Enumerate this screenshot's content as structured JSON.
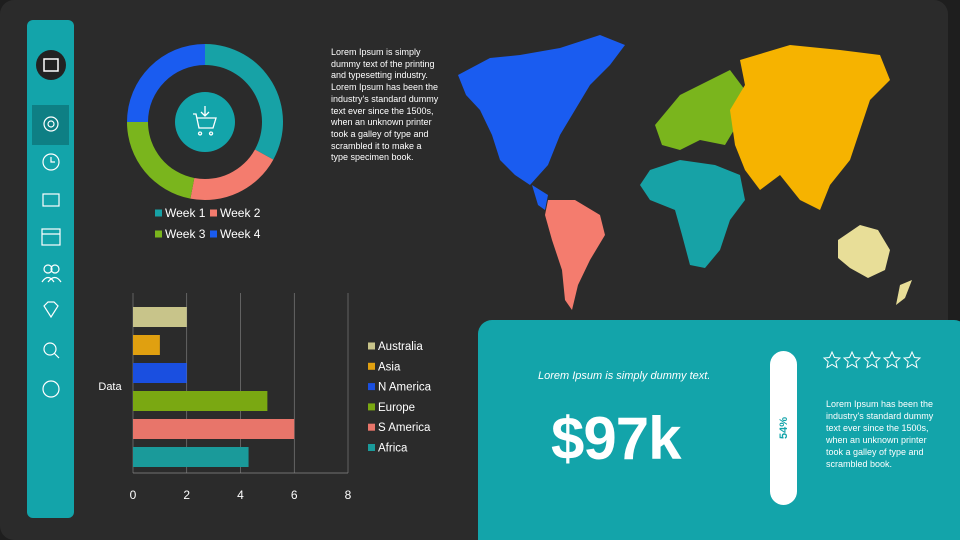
{
  "chart_data": [
    {
      "type": "pie",
      "categories": [
        "Week 1",
        "Week 2",
        "Week 3",
        "Week 4"
      ],
      "values": [
        33,
        20,
        22,
        25
      ],
      "colors": [
        "#17a2a6",
        "#f47c6e",
        "#7ab51d",
        "#1a5cf0"
      ]
    },
    {
      "type": "bar",
      "orientation": "horizontal",
      "y_label": "Data",
      "categories": [
        "Data"
      ],
      "series": [
        {
          "name": "Australia",
          "color": "#c8c48a",
          "values": [
            2
          ]
        },
        {
          "name": "Asia",
          "color": "#e0a010",
          "values": [
            1
          ]
        },
        {
          "name": "N America",
          "color": "#1a4fe0",
          "values": [
            2
          ]
        },
        {
          "name": "Europe",
          "color": "#7aa812",
          "values": [
            5
          ]
        },
        {
          "name": "S America",
          "color": "#e8756a",
          "values": [
            6
          ]
        },
        {
          "name": "Africa",
          "color": "#1a9a9a",
          "values": [
            4.3
          ]
        }
      ],
      "xlim": [
        0,
        8
      ],
      "xticks": [
        0,
        2,
        4,
        6,
        8
      ],
      "grid": true
    }
  ],
  "intro_text": "Lorem Ipsum is simply dummy text of the printing and typesetting industry. Lorem Ipsum has been the industry's standard dummy text ever since the 1500s, when an unknown printer took a galley of type and scrambled it to make a type specimen book.",
  "panel": {
    "caption": "Lorem Ipsum is simply dummy text.",
    "amount": "$97k",
    "percent": "54%",
    "description": "Lorem Ipsum has been the industry's standard dummy text ever since the 1500s, when an unknown printer took a galley of type and scrambled book."
  }
}
